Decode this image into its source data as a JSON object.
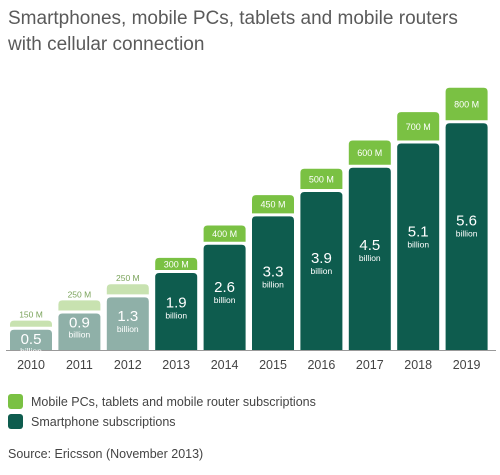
{
  "chart_data": {
    "type": "bar",
    "stacked": true,
    "title": "Smartphones, mobile PCs, tablets and mobile routers with cellular connection",
    "categories": [
      "2010",
      "2011",
      "2012",
      "2013",
      "2014",
      "2015",
      "2016",
      "2017",
      "2018",
      "2019"
    ],
    "series": [
      {
        "name": "Smartphone subscriptions",
        "values": [
          0.5,
          0.9,
          1.3,
          1.9,
          2.6,
          3.3,
          3.9,
          4.5,
          5.1,
          5.6
        ],
        "labels": [
          "0.5",
          "0.9",
          "1.3",
          "1.9",
          "2.6",
          "3.3",
          "3.9",
          "4.5",
          "5.1",
          "5.6"
        ],
        "unit_label": "billion"
      },
      {
        "name": "Mobile PCs, tablets and mobile router subscriptions",
        "values": [
          0.15,
          0.25,
          0.25,
          0.3,
          0.4,
          0.45,
          0.5,
          0.6,
          0.7,
          0.8
        ],
        "labels": [
          "150 M",
          "250 M",
          "250 M",
          "300 M",
          "400 M",
          "450 M",
          "500 M",
          "600 M",
          "700 M",
          "800 M"
        ]
      }
    ],
    "colors": {
      "smartphone": "#0e5c4e",
      "smartphone_faded": "#8fb0a8",
      "mobile": "#7ac143",
      "mobile_faded": "#c8e2b0",
      "axis": "#999999"
    },
    "faded_categories": [
      "2010",
      "2011",
      "2012"
    ],
    "ylim": [
      0,
      6.4
    ],
    "grid": false,
    "legend_position": "bottom-left"
  },
  "legend": {
    "items": [
      {
        "label": "Mobile PCs, tablets and mobile router subscriptions",
        "color": "#7ac143"
      },
      {
        "label": "Smartphone subscriptions",
        "color": "#0e5c4e"
      }
    ]
  },
  "source": "Source: Ericsson (November 2013)"
}
